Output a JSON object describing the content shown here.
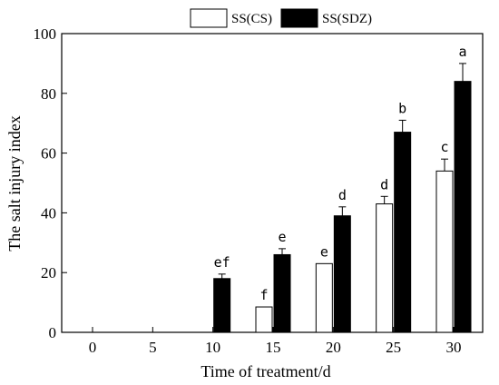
{
  "chart_data": {
    "type": "bar",
    "title": "",
    "xlabel": "Time of treatment/d",
    "ylabel": "The salt injury index",
    "categories": [
      "0",
      "5",
      "10",
      "15",
      "20",
      "25",
      "30"
    ],
    "ylim": [
      0,
      100
    ],
    "yticks": [
      "0",
      "20",
      "40",
      "60",
      "80",
      "100"
    ],
    "grid": false,
    "legend_position": "top",
    "series": [
      {
        "name": "SS(CS)",
        "fill": "#ffffff",
        "stroke": "#000000",
        "values": [
          0,
          0,
          0,
          8.5,
          23,
          43,
          54
        ],
        "errors": [
          0,
          0,
          0,
          0,
          0,
          2.5,
          4
        ],
        "labels": [
          "",
          "",
          "",
          "f",
          "e",
          "d",
          "c"
        ]
      },
      {
        "name": "SS(SDZ)",
        "fill": "#000000",
        "stroke": "#000000",
        "values": [
          0,
          0,
          18,
          26,
          39,
          67,
          84
        ],
        "errors": [
          0,
          0,
          1.5,
          2,
          3,
          4,
          6
        ],
        "labels": [
          "",
          "",
          "ef",
          "e",
          "d",
          "b",
          "a"
        ]
      }
    ]
  }
}
